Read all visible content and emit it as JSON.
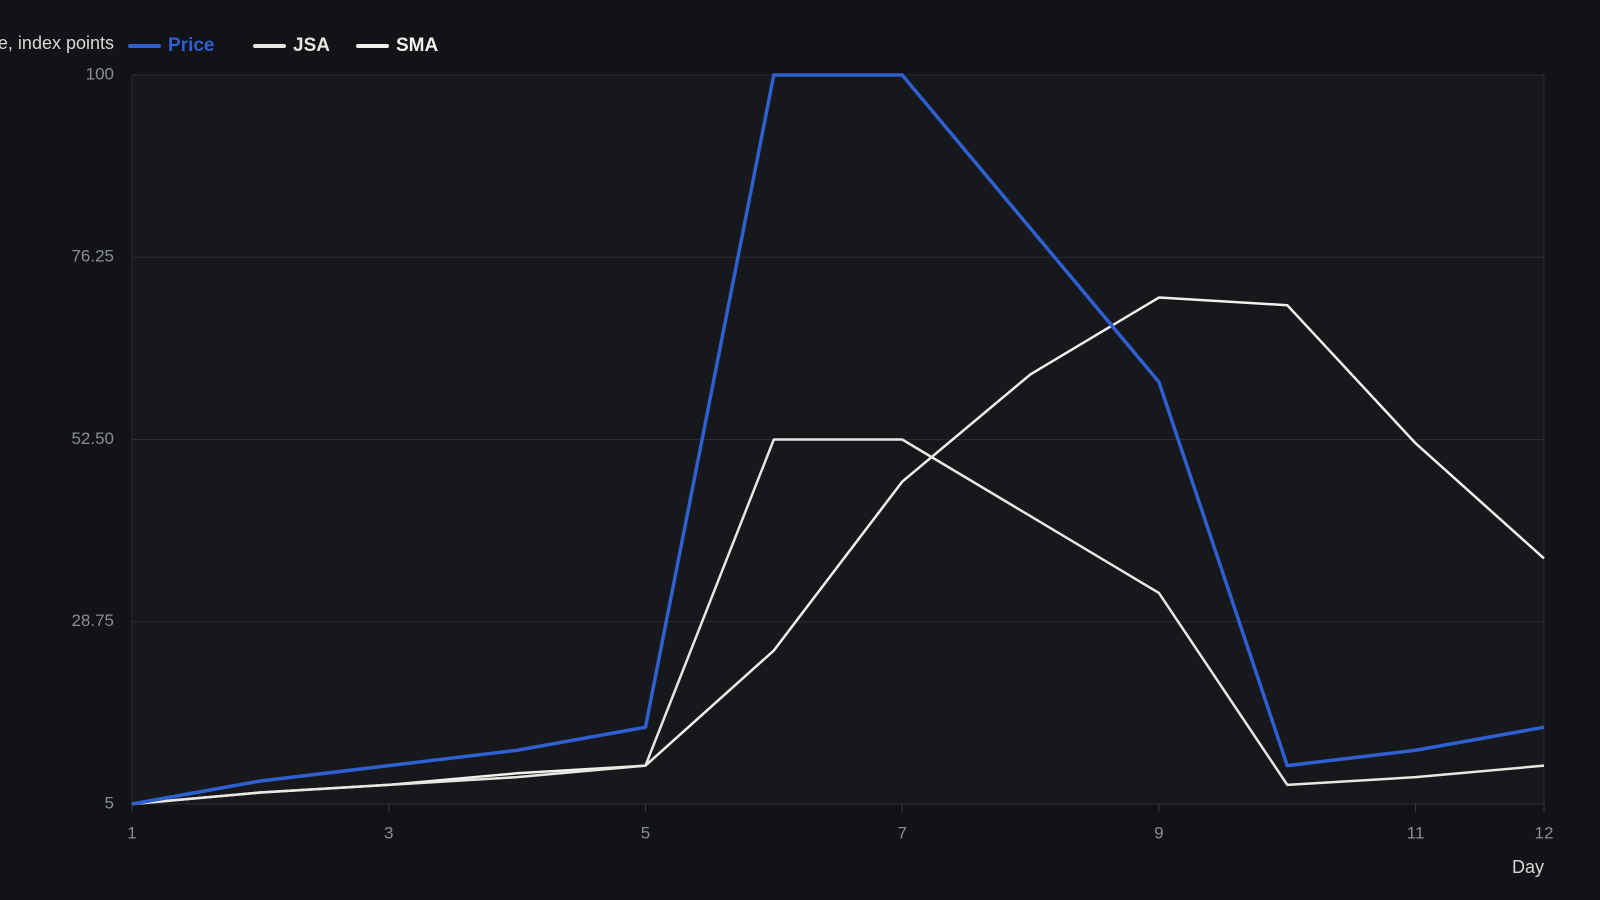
{
  "chart_data": {
    "type": "line",
    "y_label": "e, index points",
    "x_label": "Day",
    "x": [
      1,
      2,
      3,
      4,
      5,
      6,
      7,
      8,
      9,
      10,
      11,
      12
    ],
    "series": [
      {
        "name": "Price",
        "color": "#2f5fd0",
        "values": [
          5,
          8,
          10,
          12,
          15,
          100,
          100,
          80,
          60,
          10,
          12,
          15
        ]
      },
      {
        "name": "JSA",
        "color": "#e8e6e1",
        "values": [
          5,
          6.5,
          7.5,
          8.5,
          10,
          52.5,
          52.5,
          42.5,
          32.5,
          7.5,
          8.5,
          10
        ]
      },
      {
        "name": "SMA",
        "color": "#f2f0ec",
        "values": [
          5,
          6.5,
          7.5,
          9,
          10,
          25,
          47,
          61,
          71,
          70,
          52,
          37
        ]
      }
    ],
    "xlim": [
      1,
      12
    ],
    "xticks": [
      1,
      3,
      5,
      7,
      9,
      11,
      12
    ],
    "ylim": [
      5,
      100
    ],
    "yticks": [
      5,
      28.75,
      {
        "value": 52.5,
        "label": "52.50"
      },
      76.25,
      100
    ],
    "grid": true
  }
}
